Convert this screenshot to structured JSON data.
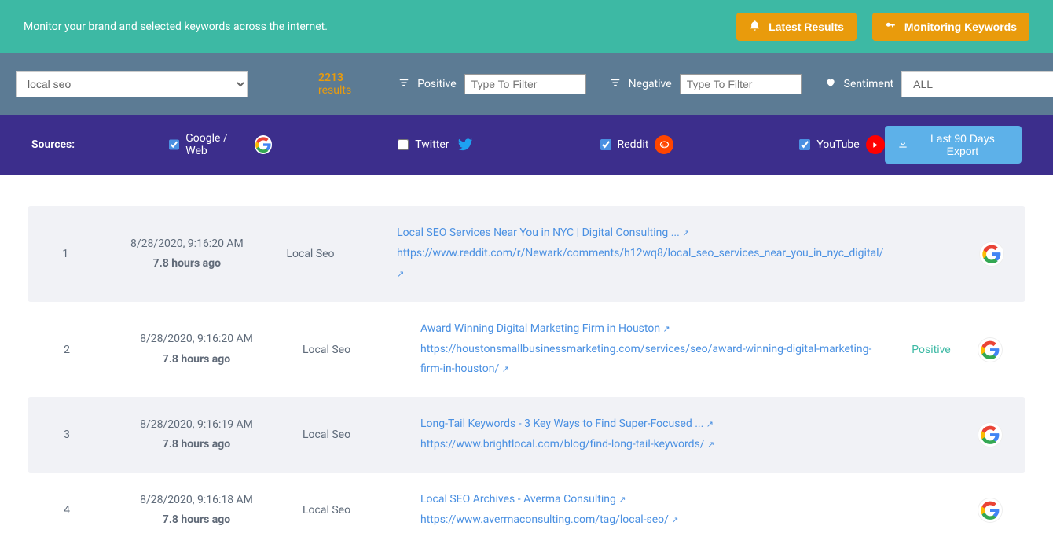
{
  "header": {
    "subtitle": "Monitor your brand and selected keywords across the internet.",
    "latest_results": "Latest Results",
    "monitoring_keywords": "Monitoring Keywords"
  },
  "filters": {
    "keyword_selected": "local seo",
    "results_count": "2213",
    "results_word": "results",
    "positive_label": "Positive",
    "positive_placeholder": "Type To Filter",
    "negative_label": "Negative",
    "negative_placeholder": "Type To Filter",
    "sentiment_label": "Sentiment",
    "sentiment_selected": "ALL"
  },
  "sources": {
    "label": "Sources:",
    "google": {
      "label": "Google / Web",
      "checked": true
    },
    "twitter": {
      "label": "Twitter",
      "checked": false
    },
    "reddit": {
      "label": "Reddit",
      "checked": true
    },
    "youtube": {
      "label": "YouTube",
      "checked": true
    },
    "export_label": "Last 90 Days Export"
  },
  "rows": [
    {
      "num": "1",
      "datetime": "8/28/2020, 9:16:20 AM",
      "ago": "7.8 hours ago",
      "keyword": "Local Seo",
      "title": "Local SEO Services Near You in NYC | Digital Consulting ...",
      "url": "https://www.reddit.com/r/Newark/comments/h12wq8/local_seo_services_near_you_in_nyc_digital/",
      "sentiment": "",
      "source": "google"
    },
    {
      "num": "2",
      "datetime": "8/28/2020, 9:16:20 AM",
      "ago": "7.8 hours ago",
      "keyword": "Local Seo",
      "title": "Award Winning Digital Marketing Firm in Houston",
      "url": "https://houstonsmallbusinessmarketing.com/services/seo/award-winning-digital-marketing-firm-in-houston/",
      "sentiment": "Positive",
      "source": "google"
    },
    {
      "num": "3",
      "datetime": "8/28/2020, 9:16:19 AM",
      "ago": "7.8 hours ago",
      "keyword": "Local Seo",
      "title": "Long-Tail Keywords - 3 Key Ways to Find Super-Focused ...",
      "url": "https://www.brightlocal.com/blog/find-long-tail-keywords/",
      "sentiment": "",
      "source": "google"
    },
    {
      "num": "4",
      "datetime": "8/28/2020, 9:16:18 AM",
      "ago": "7.8 hours ago",
      "keyword": "Local Seo",
      "title": "Local SEO Archives - Averma Consulting",
      "url": "https://www.avermaconsulting.com/tag/local-seo/",
      "sentiment": "",
      "source": "google"
    }
  ],
  "colors": {
    "teal": "#3db9a4",
    "orange": "#e99b0c",
    "slate": "#5c7b94",
    "purple": "#3c2e8c",
    "link": "#4a90e2",
    "export": "#5db1e9"
  }
}
